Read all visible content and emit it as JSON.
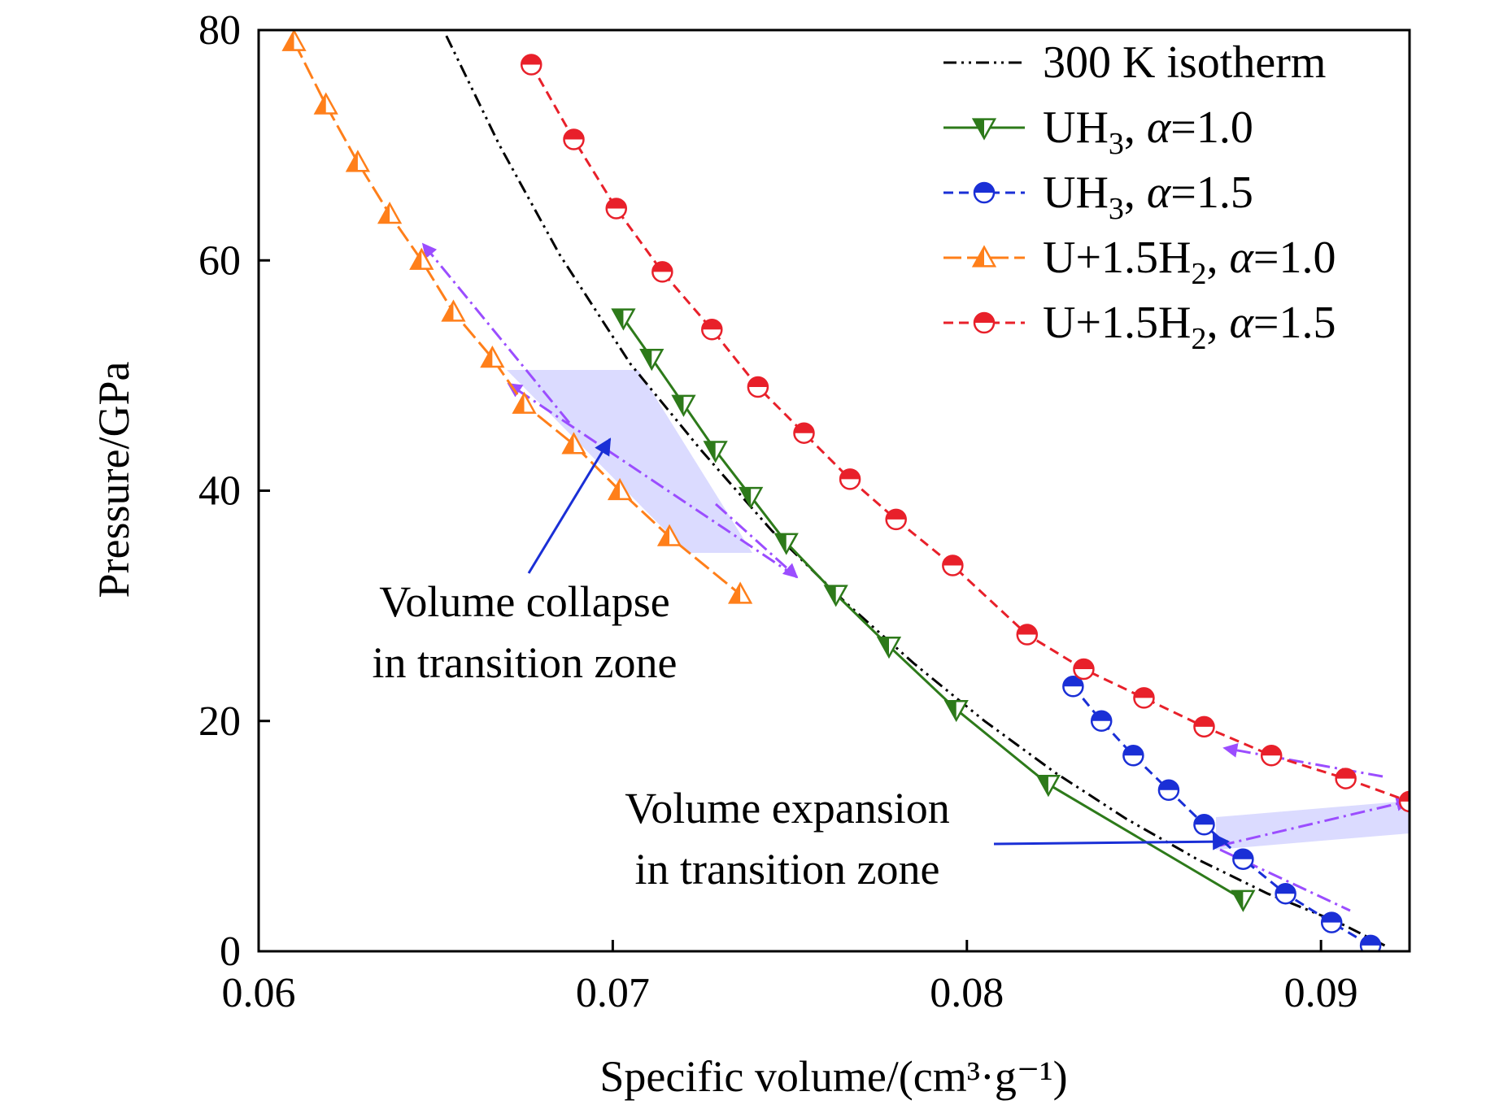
{
  "chart_data": {
    "type": "line",
    "xlabel": "Specific volume/(cm³·g⁻¹)",
    "ylabel": "Pressure/GPa",
    "xlim": [
      0.06,
      0.0925
    ],
    "ylim": [
      0,
      80
    ],
    "xticks": [
      "0.06",
      "0.07",
      "0.08",
      "0.09"
    ],
    "xtick_values": [
      0.06,
      0.07,
      0.08,
      0.09
    ],
    "yticks": [
      "0",
      "20",
      "40",
      "60",
      "80"
    ],
    "ytick_values": [
      0,
      20,
      40,
      60,
      80
    ],
    "grid": false,
    "legend_position": "top-right",
    "series": [
      {
        "name": "300 K isotherm",
        "color": "#000000",
        "dash": "dashdotdot",
        "marker": "none",
        "x": [
          0.0653,
          0.0668,
          0.0685,
          0.0705,
          0.0725,
          0.0745,
          0.0765,
          0.0785,
          0.0805,
          0.0825,
          0.0845,
          0.0865,
          0.0885,
          0.0905,
          0.0918
        ],
        "y": [
          79.5,
          70.0,
          60.5,
          51.0,
          43.5,
          36.5,
          30.5,
          25.0,
          20.0,
          15.5,
          11.5,
          8.0,
          5.0,
          2.5,
          0.5
        ]
      },
      {
        "name": "UH3, α=1.0",
        "legend_label": [
          "UH",
          "3",
          ", ",
          "α",
          "=1.0"
        ],
        "color": "#2d7a1a",
        "dash": "solid",
        "marker": "triangle-down",
        "x": [
          0.0703,
          0.0711,
          0.072,
          0.0729,
          0.0739,
          0.0749,
          0.0763,
          0.0778,
          0.0797,
          0.0823,
          0.0878
        ],
        "y": [
          55.0,
          51.5,
          47.5,
          43.5,
          39.5,
          35.5,
          31.0,
          26.5,
          21.0,
          14.5,
          4.5
        ]
      },
      {
        "name": "UH3, α=1.5",
        "legend_label": [
          "UH",
          "3",
          ", ",
          "α",
          "=1.5"
        ],
        "color": "#1a2fd6",
        "dash": "dashed",
        "marker": "circle-half",
        "x": [
          0.083,
          0.0838,
          0.0847,
          0.0857,
          0.0867,
          0.0878,
          0.089,
          0.0903,
          0.0914
        ],
        "y": [
          23.0,
          20.0,
          17.0,
          14.0,
          11.0,
          8.0,
          5.0,
          2.5,
          0.5
        ]
      },
      {
        "name": "U+1.5H2, α=1.0",
        "legend_label": [
          "U+1.5H",
          "2",
          ", ",
          "α",
          "=1.0"
        ],
        "color": "#ff7f1a",
        "dash": "longdash",
        "marker": "triangle-up",
        "x": [
          0.061,
          0.0619,
          0.0628,
          0.0637,
          0.0646,
          0.0655,
          0.0666,
          0.0675,
          0.0689,
          0.0702,
          0.0716,
          0.0736
        ],
        "y": [
          79.0,
          73.5,
          68.5,
          64.0,
          60.0,
          55.5,
          51.5,
          47.5,
          44.0,
          40.0,
          36.0,
          31.0
        ]
      },
      {
        "name": "U+1.5H2, α=1.5",
        "legend_label": [
          "U+1.5H",
          "2",
          ", ",
          "α",
          "=1.5"
        ],
        "color": "#e8202a",
        "dash": "dashed",
        "marker": "circle-half",
        "x": [
          0.0677,
          0.0689,
          0.0701,
          0.0714,
          0.0728,
          0.0741,
          0.0754,
          0.0767,
          0.078,
          0.0796,
          0.0817,
          0.0833,
          0.085,
          0.0867,
          0.0886,
          0.0907,
          0.0925
        ],
        "y": [
          77.0,
          70.5,
          64.5,
          59.0,
          54.0,
          49.0,
          45.0,
          41.0,
          37.5,
          33.5,
          27.5,
          24.5,
          22.0,
          19.5,
          17.0,
          15.0,
          13.0
        ]
      }
    ],
    "annotations": [
      {
        "text_lines": [
          "Volume collapse",
          "in transition zone"
        ]
      },
      {
        "text_lines": [
          "Volume expansion",
          "in transition zone"
        ]
      }
    ]
  }
}
